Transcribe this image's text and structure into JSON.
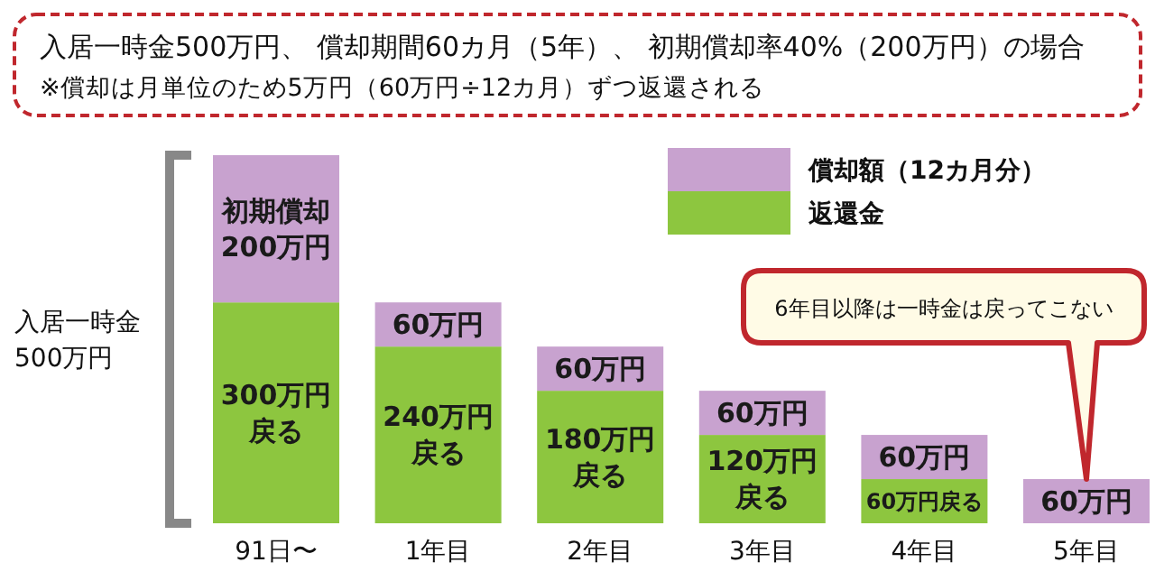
{
  "chart_data": {
    "type": "bar",
    "stacked": true,
    "title": "入居一時金500万円、 償却期間60カ月（5年）、 初期償却率40%（200万円）の場合",
    "subtitle": "※償却は月単位のため5万円（60万円÷12カ月）ずつ返還される",
    "categories": [
      "91日〜",
      "1年目",
      "2年目",
      "3年目",
      "4年目",
      "5年目"
    ],
    "series": [
      {
        "name": "返還金",
        "color": "#8dc63f",
        "values": [
          300,
          240,
          180,
          120,
          60,
          0
        ],
        "value_labels": [
          "300万円戻る",
          "240万円戻る",
          "180万円戻る",
          "120万円戻る",
          "60万円戻る",
          null
        ]
      },
      {
        "name": "償却額（12カ月分）",
        "color": "#c8a2cf",
        "values": [
          200,
          60,
          60,
          60,
          60,
          60
        ],
        "value_labels": [
          "初期償却200万円",
          "60万円",
          "60万円",
          "60万円",
          "60万円",
          "60万円"
        ]
      }
    ],
    "legend": "top right",
    "annotations": [
      "入居一時金500万円",
      "6年目以降は一時金は戻ってこない"
    ]
  }
}
